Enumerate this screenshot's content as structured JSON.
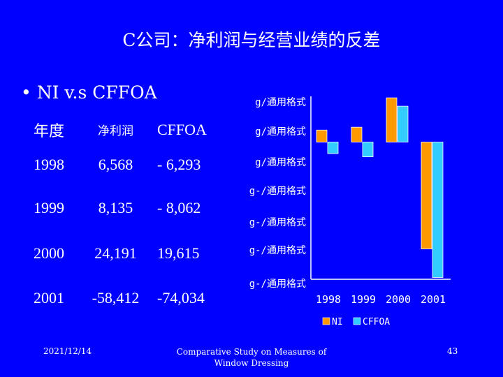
{
  "slide": {
    "title": "C公司：净利润与经营业绩的反差",
    "bullet": "• NI v.s CFFOA"
  },
  "table": {
    "headers": [
      "年度",
      "净利润",
      "CFFOA"
    ],
    "rows": [
      [
        "1998",
        "6,568",
        "- 6,293"
      ],
      [
        "1999",
        "8,135",
        "- 8,062"
      ],
      [
        "2000",
        "24,191",
        "19,615"
      ],
      [
        "2001",
        "-58,412",
        "-74,034"
      ]
    ]
  },
  "chart_data": {
    "type": "bar",
    "categories": [
      "1998",
      "1999",
      "2000",
      "2001"
    ],
    "series": [
      {
        "name": "NI",
        "values": [
          6568,
          8135,
          24191,
          -58412
        ],
        "color": "#FF9900"
      },
      {
        "name": "CFFOA",
        "values": [
          -6293,
          -8062,
          19615,
          -74034
        ],
        "color": "#33CCFF"
      }
    ],
    "ylim": [
      -75000,
      25000
    ],
    "y_tick_labels": [
      "g/通用格式",
      "g/通用格式",
      "g/通用格式",
      "g-/通用格式",
      "g-/通用格式",
      "g-/通用格式",
      "g-/通用格式"
    ],
    "legend": [
      "NI",
      "CFFOA"
    ],
    "legend_position": "bottom"
  },
  "footer": {
    "date": "2021/12/14",
    "center_line1": "Comparative Study on Measures of",
    "center_line2": "Window Dressing",
    "page": "43"
  }
}
